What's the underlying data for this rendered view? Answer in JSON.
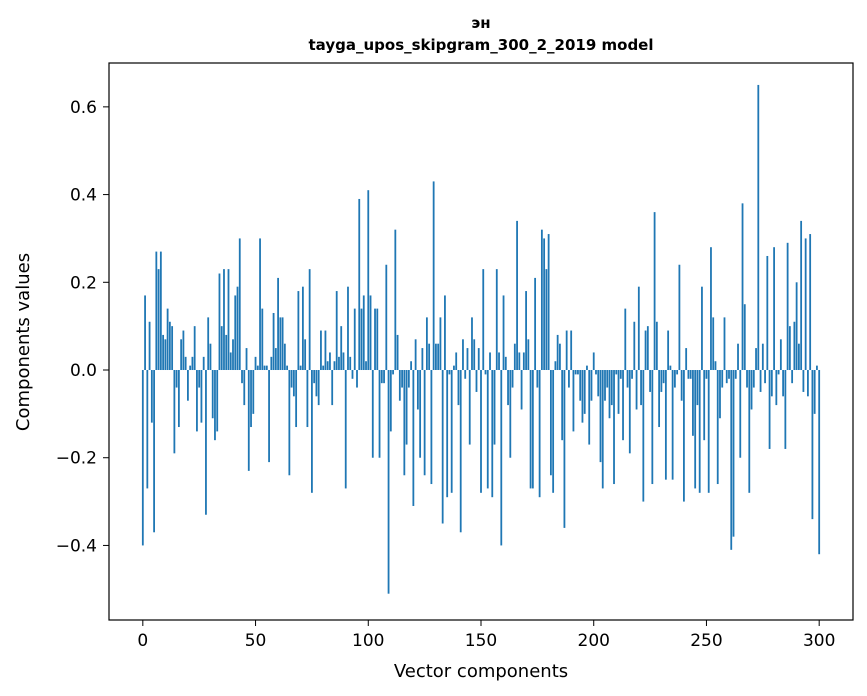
{
  "chart_data": {
    "type": "bar",
    "title_line1": "эн",
    "title_line2": "tayga_upos_skipgram_300_2_2019 model",
    "xlabel": "Vector components",
    "ylabel": "Components values",
    "xlim": [
      -15,
      315
    ],
    "ylim": [
      -0.57,
      0.7
    ],
    "xticks": [
      0,
      50,
      100,
      150,
      200,
      250,
      300
    ],
    "xtick_labels": [
      "0",
      "50",
      "100",
      "150",
      "200",
      "250",
      "300"
    ],
    "yticks": [
      -0.4,
      -0.2,
      0.0,
      0.2,
      0.4,
      0.6
    ],
    "ytick_labels": [
      "−0.4",
      "−0.2",
      "0.0",
      "0.2",
      "0.4",
      "0.6"
    ],
    "bar_color": "#1f77b4",
    "values": [
      -0.4,
      0.17,
      -0.27,
      0.11,
      -0.12,
      -0.37,
      0.27,
      0.23,
      0.27,
      0.08,
      0.07,
      0.14,
      0.11,
      0.1,
      -0.19,
      -0.04,
      -0.13,
      0.07,
      0.09,
      0.03,
      -0.07,
      0.01,
      0.03,
      0.1,
      -0.14,
      -0.04,
      -0.12,
      0.03,
      -0.33,
      0.12,
      0.06,
      -0.11,
      -0.16,
      -0.14,
      0.22,
      0.1,
      0.23,
      0.08,
      0.23,
      0.04,
      0.07,
      0.17,
      0.19,
      0.3,
      -0.03,
      -0.08,
      0.05,
      -0.23,
      -0.13,
      -0.1,
      0.03,
      0.01,
      0.3,
      0.14,
      0.01,
      0.01,
      -0.21,
      0.03,
      0.13,
      0.05,
      0.21,
      0.12,
      0.12,
      0.06,
      0.01,
      -0.24,
      -0.04,
      -0.06,
      -0.13,
      0.18,
      0.01,
      0.19,
      0.07,
      -0.13,
      0.23,
      -0.28,
      -0.03,
      -0.06,
      -0.08,
      0.09,
      0.01,
      0.09,
      0.02,
      0.04,
      -0.08,
      0.02,
      0.18,
      0.03,
      0.1,
      0.04,
      -0.27,
      0.19,
      0.03,
      -0.02,
      0.14,
      -0.04,
      0.39,
      0.14,
      0.17,
      0.02,
      0.41,
      0.17,
      -0.2,
      0.14,
      0.14,
      -0.2,
      -0.03,
      -0.03,
      0.24,
      -0.51,
      -0.14,
      -0.01,
      0.32,
      0.08,
      -0.07,
      -0.04,
      -0.24,
      -0.17,
      -0.04,
      0.02,
      -0.31,
      0.07,
      -0.09,
      -0.2,
      0.05,
      -0.24,
      0.12,
      0.06,
      -0.26,
      0.43,
      0.06,
      0.06,
      0.12,
      -0.35,
      0.17,
      -0.29,
      -0.01,
      -0.28,
      0.01,
      0.04,
      -0.08,
      -0.37,
      0.07,
      -0.02,
      0.05,
      -0.17,
      0.12,
      0.07,
      -0.05,
      0.05,
      -0.28,
      0.23,
      -0.01,
      -0.27,
      0.04,
      -0.29,
      -0.17,
      0.23,
      0.04,
      -0.4,
      0.17,
      0.03,
      -0.08,
      -0.2,
      -0.04,
      0.06,
      0.34,
      0.04,
      -0.09,
      0.04,
      0.18,
      0.07,
      -0.27,
      -0.27,
      0.21,
      -0.04,
      -0.29,
      0.32,
      0.3,
      0.23,
      0.31,
      -0.24,
      -0.28,
      0.02,
      0.08,
      0.06,
      -0.16,
      -0.36,
      0.09,
      -0.04,
      0.09,
      -0.14,
      -0.01,
      -0.01,
      -0.07,
      -0.12,
      -0.1,
      0.01,
      -0.17,
      -0.07,
      0.04,
      -0.01,
      -0.06,
      -0.21,
      -0.27,
      -0.07,
      -0.04,
      -0.11,
      -0.08,
      -0.26,
      -0.01,
      -0.1,
      -0.02,
      -0.16,
      0.14,
      -0.04,
      -0.19,
      -0.02,
      0.11,
      -0.09,
      0.19,
      -0.08,
      -0.3,
      0.09,
      0.1,
      -0.05,
      -0.26,
      0.36,
      0.11,
      -0.13,
      -0.05,
      -0.03,
      -0.25,
      0.09,
      0.01,
      -0.25,
      -0.04,
      -0.01,
      0.24,
      -0.07,
      -0.3,
      0.05,
      -0.02,
      -0.02,
      -0.15,
      -0.27,
      -0.08,
      -0.28,
      0.19,
      -0.16,
      -0.02,
      -0.28,
      0.28,
      0.12,
      0.02,
      -0.26,
      -0.11,
      -0.04,
      0.12,
      -0.03,
      -0.02,
      -0.41,
      -0.38,
      -0.02,
      0.06,
      -0.2,
      0.38,
      0.15,
      -0.04,
      -0.28,
      -0.09,
      -0.04,
      0.05,
      0.65,
      -0.05,
      0.06,
      -0.03,
      0.26,
      -0.18,
      -0.06,
      0.28,
      -0.08,
      -0.01,
      0.07,
      -0.06,
      -0.18,
      0.29,
      0.1,
      -0.03,
      0.11,
      0.2,
      0.06,
      0.34,
      -0.05,
      0.3,
      -0.06,
      0.31,
      -0.34,
      -0.1,
      0.01,
      -0.42
    ]
  }
}
